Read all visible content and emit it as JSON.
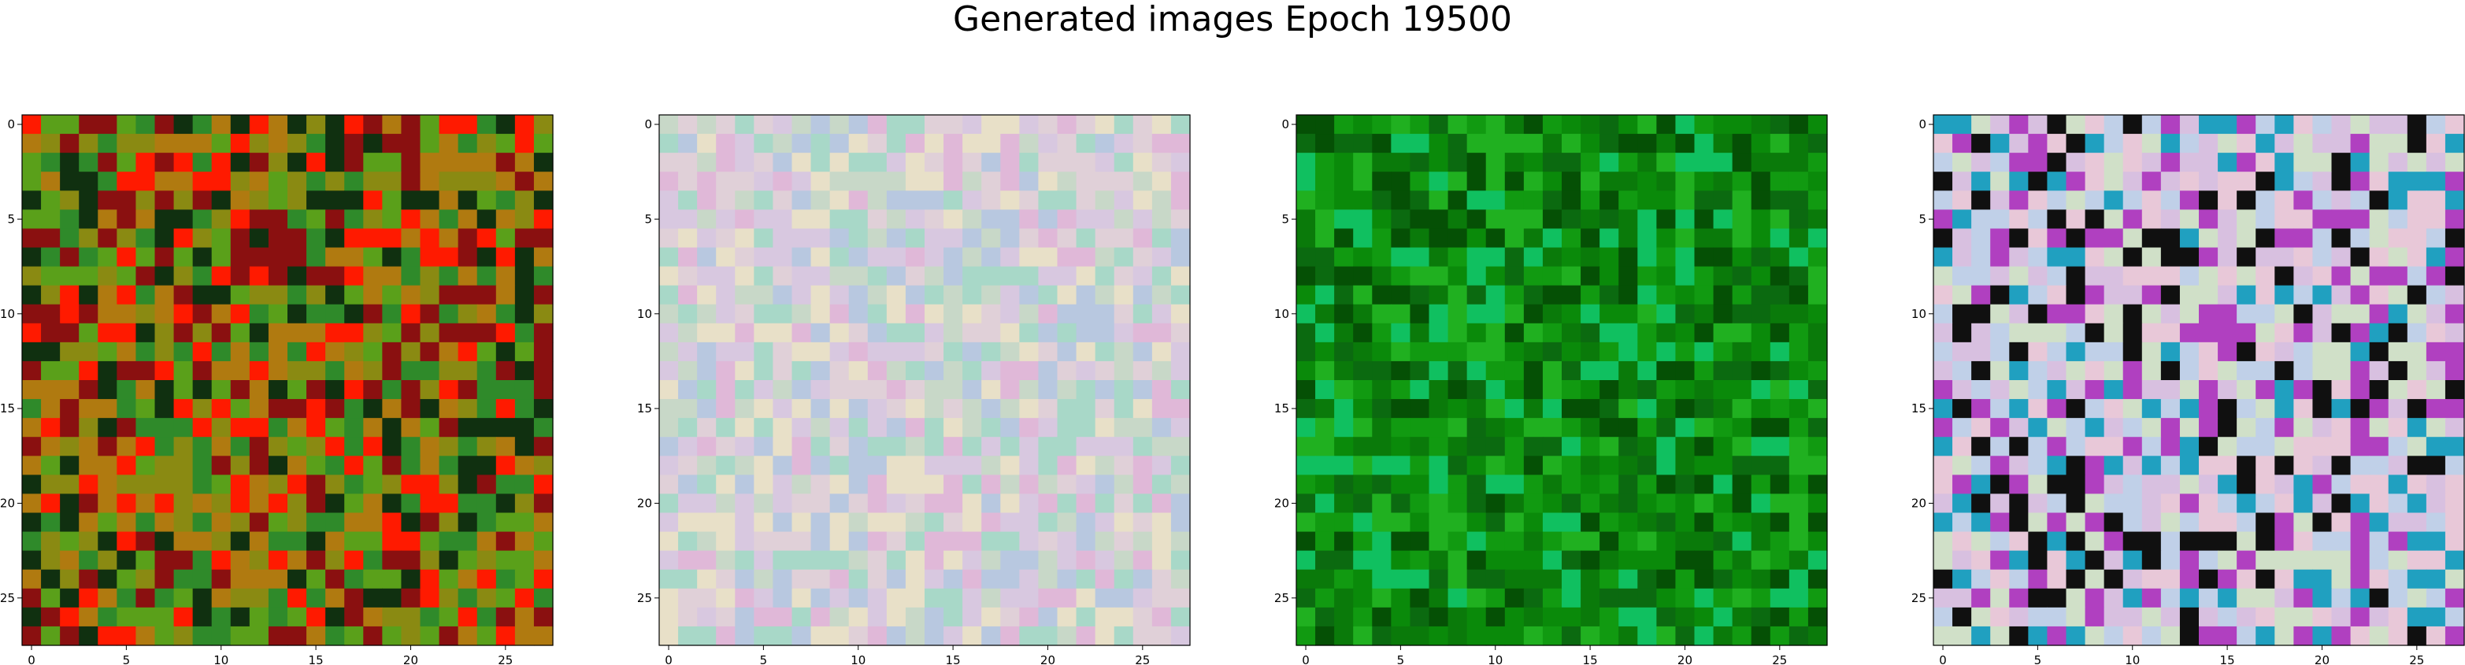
{
  "figure": {
    "title": "Generated images Epoch 19500"
  },
  "chart_data": [
    {
      "type": "heatmap",
      "grid": [
        28,
        28
      ],
      "palette": "green-olive-red",
      "colors": [
        "#2f8a2a",
        "#5aa01a",
        "#8a8a12",
        "#b07a10",
        "#8a1010",
        "#ff1a00",
        "#103010"
      ],
      "xticks": [
        0,
        5,
        10,
        15,
        20,
        25
      ],
      "yticks": [
        0,
        5,
        10,
        15,
        20,
        25
      ],
      "xlim": [
        -0.5,
        27.5
      ],
      "ylim": [
        27.5,
        -0.5
      ],
      "grid_lines": false
    },
    {
      "type": "heatmap",
      "grid": [
        28,
        28
      ],
      "palette": "pastel",
      "colors": [
        "#d8c8e0",
        "#c8d8c8",
        "#e0d0d8",
        "#b8c8e0",
        "#e8e0c8",
        "#a8d8c8",
        "#e0b8d8"
      ],
      "xticks": [
        0,
        5,
        10,
        15,
        20,
        25
      ],
      "yticks": [
        0,
        5,
        10,
        15,
        20,
        25
      ],
      "xlim": [
        -0.5,
        27.5
      ],
      "ylim": [
        27.5,
        -0.5
      ],
      "grid_lines": false
    },
    {
      "type": "heatmap",
      "grid": [
        28,
        28
      ],
      "palette": "green",
      "colors": [
        "#0a7a0a",
        "#0b6a10",
        "#119a11",
        "#055005",
        "#20b020",
        "#10c060",
        "#0a8a0a"
      ],
      "xticks": [
        0,
        5,
        10,
        15,
        20,
        25
      ],
      "yticks": [
        0,
        5,
        10,
        15,
        20,
        25
      ],
      "xlim": [
        -0.5,
        27.5
      ],
      "ylim": [
        27.5,
        -0.5
      ],
      "grid_lines": false
    },
    {
      "type": "heatmap",
      "grid": [
        28,
        28
      ],
      "palette": "pastel-vivid",
      "colors": [
        "#d8c0e0",
        "#c0d0e8",
        "#e8c8d8",
        "#d0e0c8",
        "#b040c0",
        "#20a0c0",
        "#101010"
      ],
      "xticks": [
        0,
        5,
        10,
        15,
        20,
        25
      ],
      "yticks": [
        0,
        5,
        10,
        15,
        20,
        25
      ],
      "xlim": [
        -0.5,
        27.5
      ],
      "ylim": [
        27.5,
        -0.5
      ],
      "grid_lines": false
    }
  ]
}
